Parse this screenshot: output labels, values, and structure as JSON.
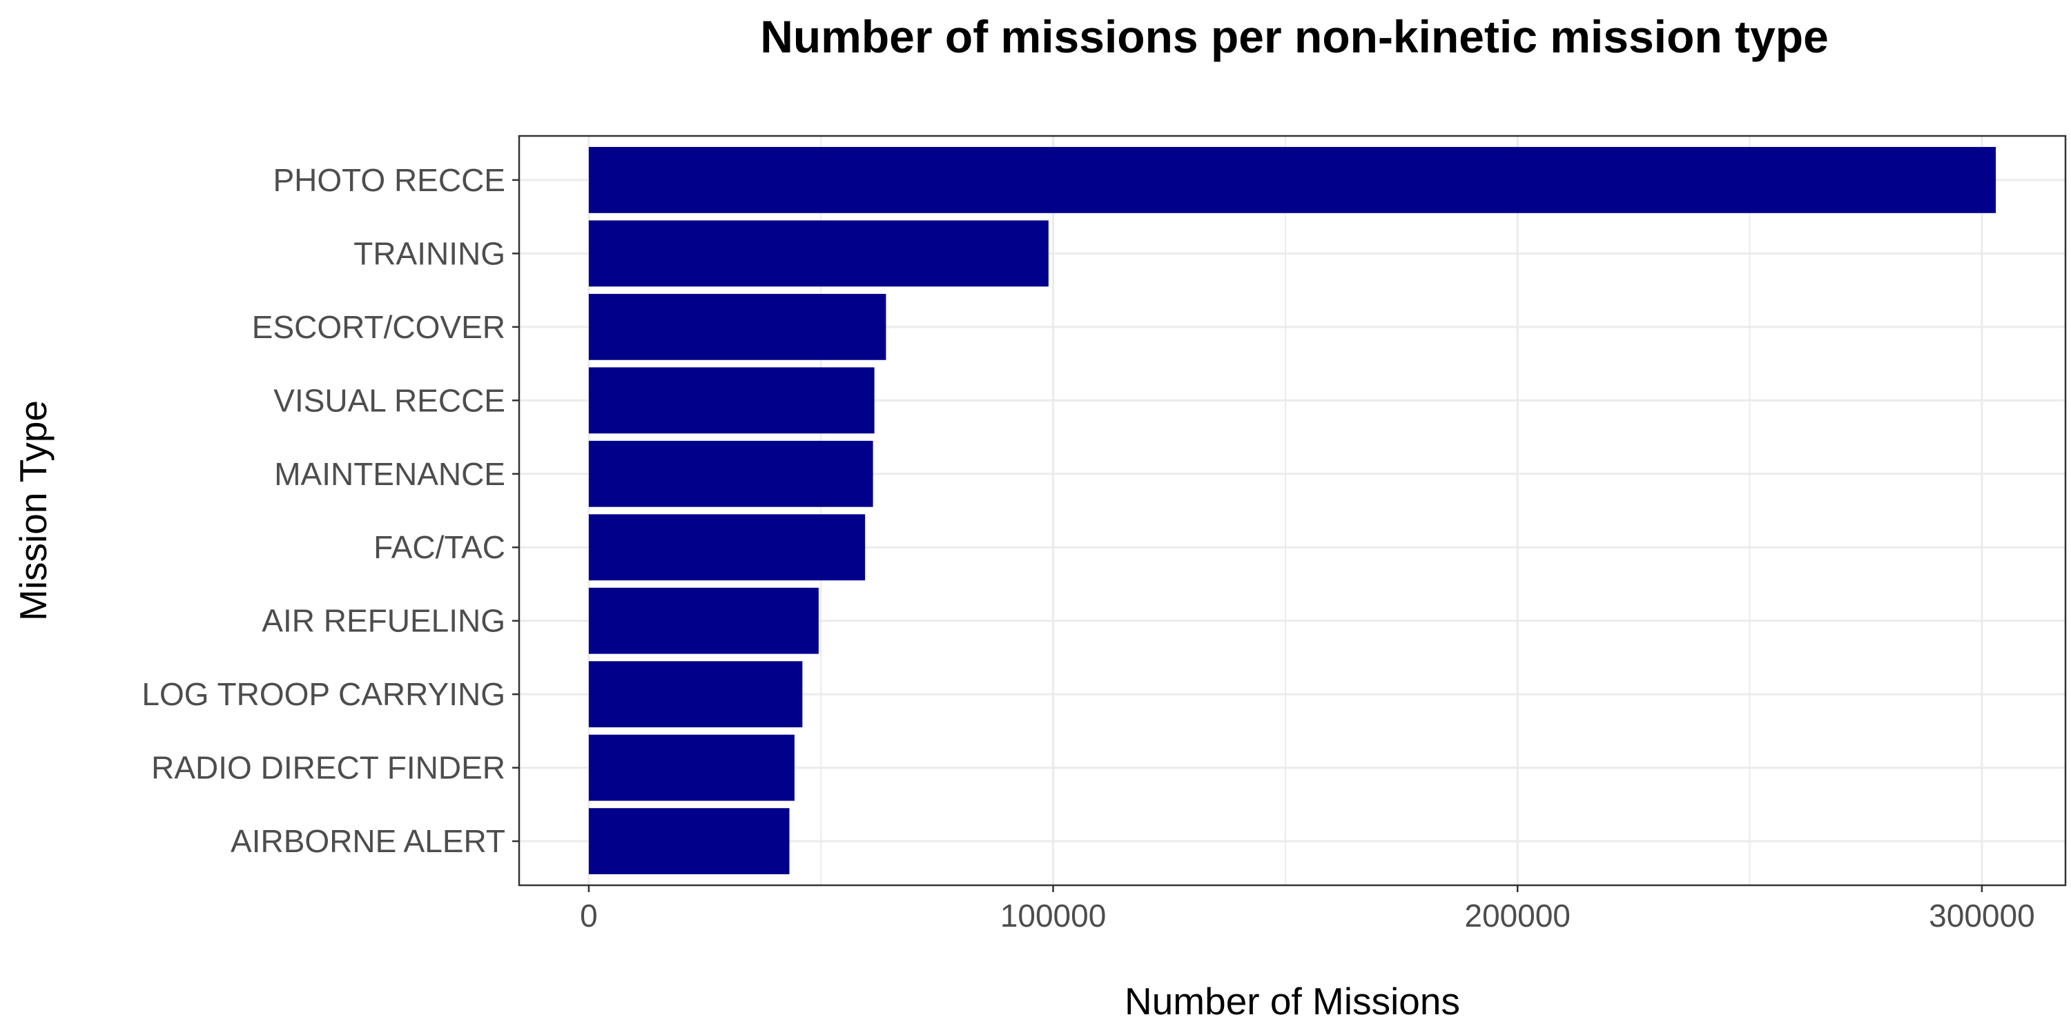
{
  "chart_data": {
    "type": "bar",
    "orientation": "horizontal",
    "title": "Number of missions per non-kinetic mission type",
    "xlabel": "Number of Missions",
    "ylabel": "Mission Type",
    "categories": [
      "PHOTO RECCE",
      "TRAINING",
      "ESCORT/COVER",
      "VISUAL RECCE",
      "MAINTENANCE",
      "FAC/TAC",
      "AIR REFUELING",
      "LOG TROOP CARRYING",
      "RADIO DIRECT FINDER",
      "AIRBORNE ALERT"
    ],
    "values": [
      303000,
      99000,
      64000,
      61500,
      61200,
      59500,
      49500,
      46000,
      44300,
      43200
    ],
    "xlim": [
      -15000,
      318000
    ],
    "xticks": [
      0,
      100000,
      200000,
      300000
    ],
    "xtick_labels": [
      "0",
      "100000",
      "200000",
      "300000"
    ],
    "grid": true,
    "legend": "none",
    "bar_color": "#00008B",
    "panel_border_color": "#333333",
    "grid_color": "#EBEBEB"
  }
}
